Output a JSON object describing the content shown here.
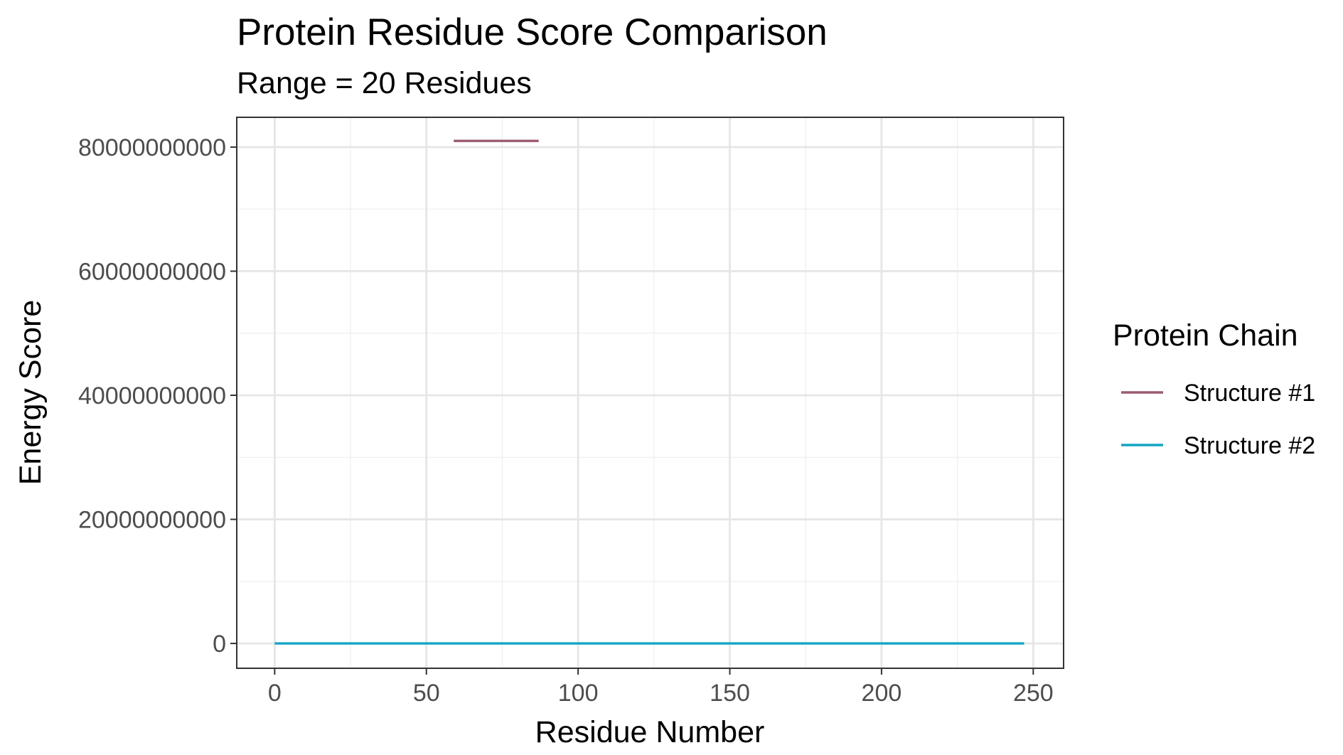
{
  "chart_data": {
    "type": "line",
    "title": "Protein Residue Score Comparison",
    "subtitle": "Range = 20 Residues",
    "xlabel": "Residue Number",
    "ylabel": "Energy Score",
    "xlim": [
      -12.5,
      260
    ],
    "ylim": [
      -4000000000,
      84800000000
    ],
    "x_ticks": [
      0,
      50,
      100,
      150,
      200,
      250
    ],
    "x_tick_labels": [
      "0",
      "50",
      "100",
      "150",
      "200",
      "250"
    ],
    "x_minor_ticks": [
      25,
      75,
      125,
      175,
      225
    ],
    "y_ticks": [
      0,
      20000000000,
      40000000000,
      60000000000,
      80000000000
    ],
    "y_tick_labels": [
      "0",
      "20000000000",
      "40000000000",
      "60000000000",
      "80000000000"
    ],
    "y_minor_ticks": [
      10000000000,
      30000000000,
      50000000000,
      70000000000
    ],
    "grid": true,
    "legend": {
      "title": "Protein Chain",
      "position": "right"
    },
    "series": [
      {
        "name": "Structure #1",
        "color": "#9b5a72",
        "x": [
          59,
          87
        ],
        "y": [
          81000000000,
          81000000000
        ]
      },
      {
        "name": "Structure #2",
        "color": "#13a6c4",
        "x": [
          0,
          247
        ],
        "y": [
          0,
          0
        ]
      }
    ]
  }
}
